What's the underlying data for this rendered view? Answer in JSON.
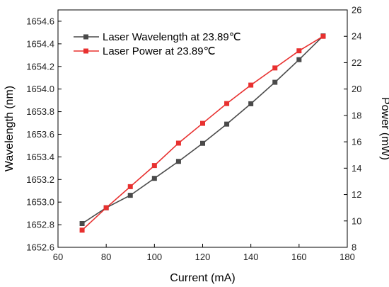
{
  "chart_data": {
    "type": "line",
    "xlabel": "Current (mA)",
    "ylabel_left": "Wavelength (nm)",
    "ylabel_right": "Power (mW)",
    "xlim": [
      60,
      180
    ],
    "xticks": [
      60,
      80,
      100,
      120,
      140,
      160,
      180
    ],
    "ylim_left": [
      1652.6,
      1654.7
    ],
    "yticks_left": [
      "1652.6",
      "1652.8",
      "1653.0",
      "1653.2",
      "1653.4",
      "1653.6",
      "1653.8",
      "1654.0",
      "1654.2",
      "1654.4",
      "1654.6"
    ],
    "ylim_right": [
      8,
      26
    ],
    "yticks_right": [
      "8",
      "10",
      "12",
      "14",
      "16",
      "18",
      "20",
      "22",
      "24",
      "26"
    ],
    "legend_position": "top-left",
    "series": [
      {
        "name": "Laser Wavelength at 23.89℃",
        "axis": "left",
        "color": "#4a4a4a",
        "marker": "square",
        "x": [
          70,
          80,
          90,
          100,
          110,
          120,
          130,
          140,
          150,
          160,
          170
        ],
        "values": [
          1652.81,
          1652.95,
          1653.06,
          1653.21,
          1653.36,
          1653.52,
          1653.69,
          1653.87,
          1654.06,
          1654.26,
          1654.47
        ]
      },
      {
        "name": "Laser Power at 23.89℃",
        "axis": "right",
        "color": "#e8302f",
        "marker": "square",
        "x": [
          70,
          80,
          90,
          100,
          110,
          120,
          130,
          140,
          150,
          160,
          170
        ],
        "values": [
          9.3,
          11.0,
          12.6,
          14.2,
          15.9,
          17.4,
          18.9,
          20.3,
          21.6,
          22.9,
          24.0
        ]
      }
    ]
  }
}
